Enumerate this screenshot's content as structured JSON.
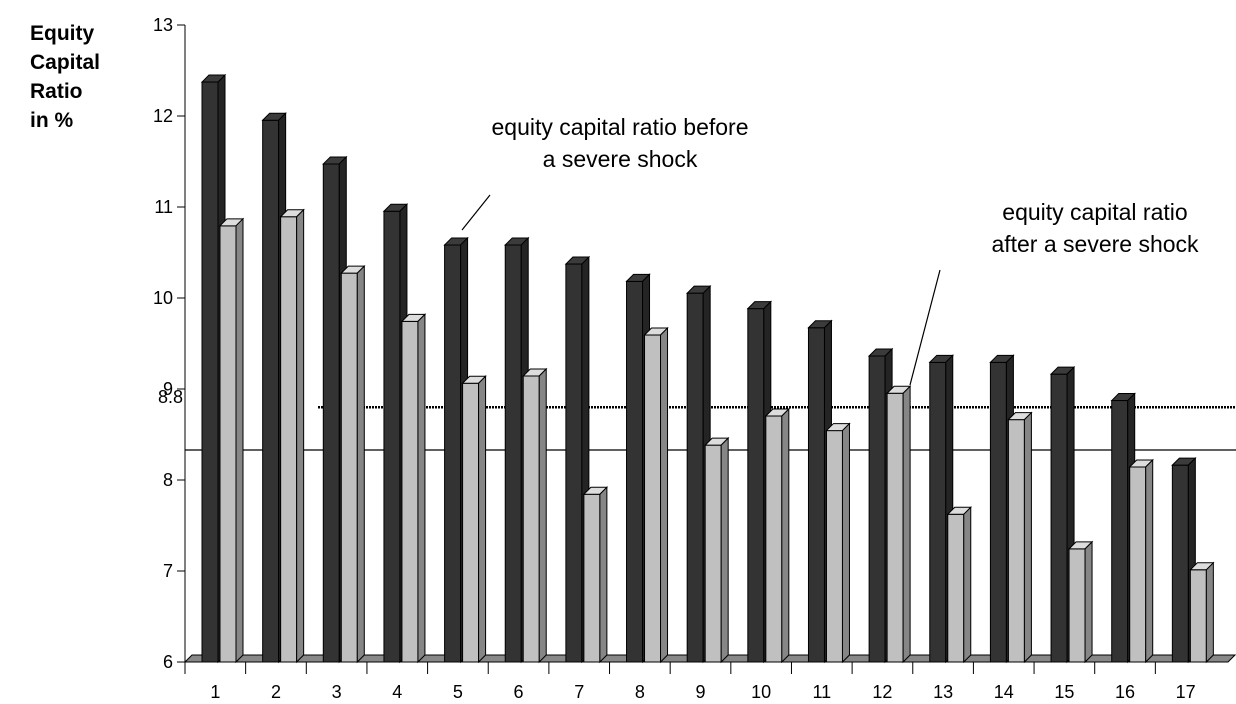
{
  "chart_data": {
    "type": "bar3d",
    "y_label_lines": [
      "Equity",
      "Capital",
      "Ratio",
      "in %"
    ],
    "categories": [
      "1",
      "2",
      "3",
      "4",
      "5",
      "6",
      "7",
      "8",
      "9",
      "10",
      "11",
      "12",
      "13",
      "14",
      "15",
      "16",
      "17"
    ],
    "series": [
      {
        "color": "#333333",
        "values": [
          12.45,
          12.03,
          11.55,
          11.03,
          10.66,
          10.66,
          10.45,
          10.26,
          10.13,
          9.96,
          9.75,
          9.44,
          9.37,
          9.37,
          9.24,
          8.95,
          8.24
        ]
      },
      {
        "color": "#c0c0c0",
        "values": [
          10.87,
          10.97,
          10.35,
          9.82,
          9.14,
          9.22,
          7.92,
          9.67,
          8.46,
          8.78,
          8.62,
          9.03,
          7.7,
          8.74,
          7.32,
          8.22,
          7.09
        ]
      }
    ],
    "ylim": [
      6,
      13
    ],
    "yticks": [
      6,
      7,
      8,
      9,
      10,
      11,
      12,
      13
    ],
    "reference_lines": [
      {
        "label": "8.8",
        "value": 8.8,
        "style": "dotted"
      },
      {
        "value": 8.33,
        "style": "solid"
      }
    ],
    "annotations": [
      {
        "lines": [
          "equity capital ratio before",
          "a severe shock"
        ]
      },
      {
        "lines": [
          "equity capital ratio",
          "after a severe shock"
        ]
      }
    ]
  }
}
